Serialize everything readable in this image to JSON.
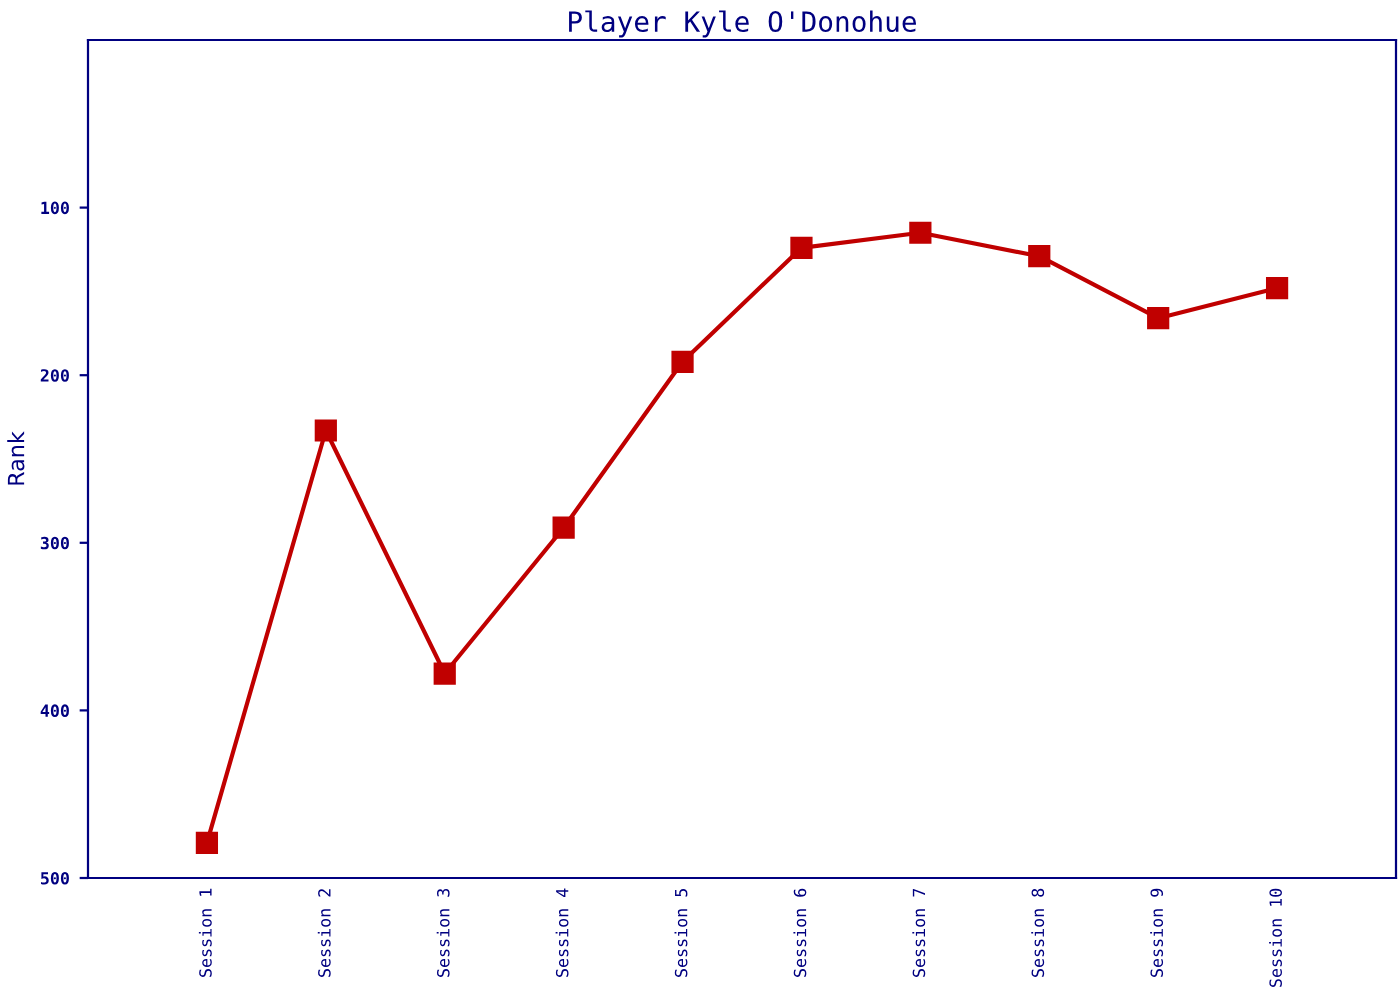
{
  "chart_data": {
    "type": "line",
    "title": "Player Kyle O'Donohue",
    "ylabel": "Rank",
    "categories": [
      "Session 1",
      "Session 2",
      "Session 3",
      "Session 4",
      "Session 5",
      "Session 6",
      "Session 7",
      "Session 8",
      "Session 9",
      "Session 10"
    ],
    "series": [
      {
        "color": "#c00000",
        "values": [
          479,
          233,
          378,
          291,
          192,
          124,
          115,
          129,
          166,
          148
        ]
      }
    ],
    "ylim": [
      500,
      0
    ],
    "yticks": [
      100,
      200,
      300,
      400,
      500
    ],
    "marker": "square",
    "line_style": "solid",
    "grid": false,
    "legend": false
  }
}
